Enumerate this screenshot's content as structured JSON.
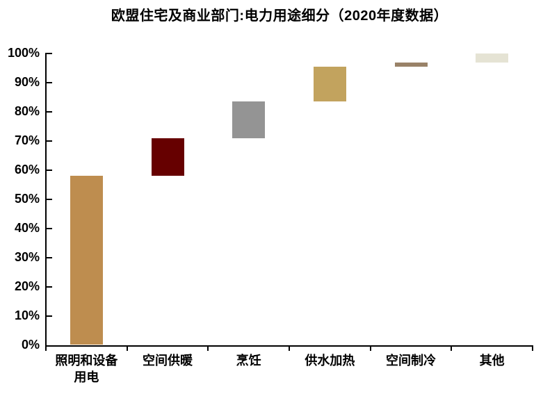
{
  "page": {
    "background_color": "#ffffff",
    "text_color": "#000000",
    "axis_color": "#000000"
  },
  "chart_data": {
    "type": "bar",
    "subtype": "waterfall",
    "title": "欧盟住宅及商业部门:电力用途细分（2020年度数据）",
    "xlabel": "",
    "ylabel": "",
    "ylim": [
      0,
      100
    ],
    "grid": false,
    "legend_position": "none",
    "y_axis": {
      "min": 0,
      "max": 100,
      "tick_step": 10,
      "tick_labels": [
        "0%",
        "10%",
        "20%",
        "30%",
        "40%",
        "50%",
        "60%",
        "70%",
        "80%",
        "90%",
        "100%"
      ]
    },
    "categories": [
      {
        "label": "照明和设备用电",
        "lines": [
          "照明和设备",
          "用电"
        ]
      },
      {
        "label": "空间供暖",
        "lines": [
          "空间供暖"
        ]
      },
      {
        "label": "烹饪",
        "lines": [
          "烹饪"
        ]
      },
      {
        "label": "供水加热",
        "lines": [
          "供水加热"
        ]
      },
      {
        "label": "空间制冷",
        "lines": [
          "空间制冷"
        ]
      },
      {
        "label": "其他",
        "lines": [
          "其他"
        ]
      }
    ],
    "segments": [
      {
        "category": "照明和设备用电",
        "start": 0,
        "end": 58,
        "value": 58,
        "color": "#BE8D4F"
      },
      {
        "category": "空间供暖",
        "start": 58,
        "end": 71,
        "value": 13,
        "color": "#660000"
      },
      {
        "category": "烹饪",
        "start": 71,
        "end": 83.5,
        "value": 12.5,
        "color": "#949494"
      },
      {
        "category": "供水加热",
        "start": 83.5,
        "end": 95.5,
        "value": 12,
        "color": "#C2A35E"
      },
      {
        "category": "空间制冷",
        "start": 95.5,
        "end": 97,
        "value": 1.5,
        "color": "#998268"
      },
      {
        "category": "其他",
        "start": 97,
        "end": 100,
        "value": 3,
        "color": "#E5E3D4"
      }
    ]
  }
}
